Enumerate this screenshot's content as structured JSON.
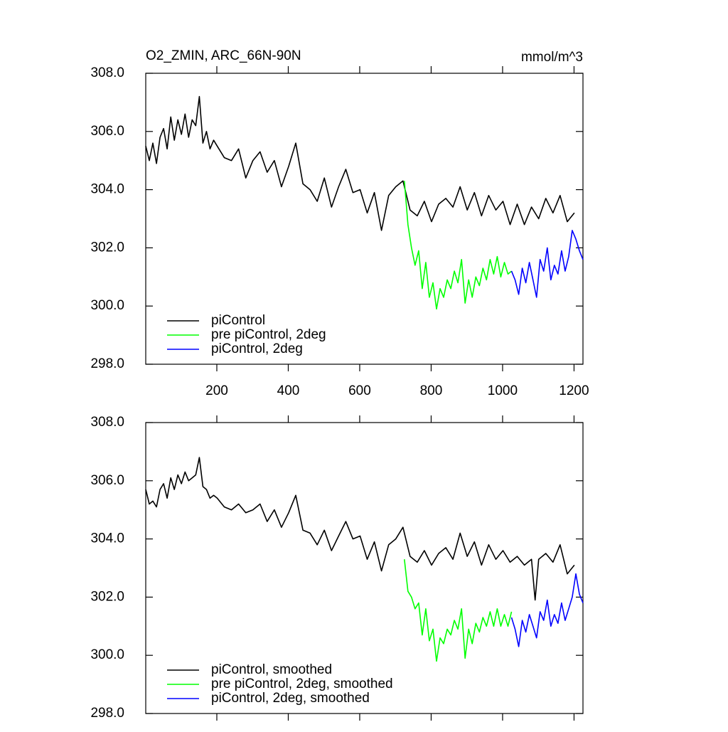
{
  "chart_data": [
    {
      "type": "line",
      "title": "O2_ZMIN, ARC_66N-90N",
      "units": "mmol/m^3",
      "xlim": [
        1,
        1225
      ],
      "ylim": [
        298,
        308
      ],
      "show_xtick_labels": true,
      "xticks": [
        200,
        400,
        600,
        800,
        1000,
        1200
      ],
      "yticks": [
        {
          "value": 298,
          "label": "298.0"
        },
        {
          "value": 300,
          "label": "300.0"
        },
        {
          "value": 302,
          "label": "302.0"
        },
        {
          "value": 304,
          "label": "304.0"
        },
        {
          "value": 306,
          "label": "306.0"
        },
        {
          "value": 308,
          "label": "308.0"
        }
      ],
      "series": [
        {
          "name": "piControl",
          "color": "#000000",
          "x": [
            1,
            11,
            21,
            31,
            41,
            51,
            61,
            71,
            81,
            91,
            101,
            111,
            121,
            131,
            141,
            151,
            161,
            171,
            181,
            191,
            201,
            221,
            241,
            261,
            281,
            301,
            321,
            341,
            361,
            381,
            401,
            421,
            441,
            461,
            481,
            501,
            521,
            541,
            561,
            581,
            601,
            621,
            641,
            661,
            681,
            701,
            721,
            741,
            761,
            781,
            801,
            821,
            841,
            861,
            881,
            901,
            921,
            941,
            961,
            981,
            1001,
            1021,
            1041,
            1061,
            1081,
            1101,
            1121,
            1141,
            1161,
            1181,
            1201
          ],
          "values": [
            305.5,
            305.0,
            305.6,
            304.9,
            305.8,
            306.1,
            305.4,
            306.5,
            305.7,
            306.4,
            305.9,
            306.6,
            305.8,
            306.4,
            306.2,
            307.2,
            305.6,
            306.0,
            305.4,
            305.7,
            305.5,
            305.1,
            305.0,
            305.4,
            304.4,
            305.0,
            305.3,
            304.6,
            305.0,
            304.1,
            304.8,
            305.6,
            304.2,
            304.0,
            303.6,
            304.4,
            303.4,
            304.1,
            304.7,
            303.9,
            304.0,
            303.2,
            303.9,
            302.6,
            303.8,
            304.1,
            304.3,
            303.3,
            303.1,
            303.6,
            302.9,
            303.5,
            303.7,
            303.4,
            304.1,
            303.3,
            303.9,
            303.1,
            303.8,
            303.3,
            303.6,
            302.8,
            303.5,
            302.8,
            303.4,
            303.0,
            303.7,
            303.2,
            303.8,
            302.9,
            303.2
          ]
        },
        {
          "name": "pre piControl, 2deg",
          "color": "#00ff00",
          "x": [
            725,
            735,
            745,
            755,
            765,
            775,
            785,
            795,
            805,
            815,
            825,
            835,
            845,
            855,
            865,
            875,
            885,
            895,
            905,
            915,
            925,
            935,
            945,
            955,
            965,
            975,
            985,
            995,
            1005,
            1015,
            1025
          ],
          "values": [
            304.3,
            302.8,
            302.0,
            301.4,
            301.9,
            300.6,
            301.5,
            300.3,
            300.8,
            299.9,
            300.6,
            300.3,
            300.9,
            300.6,
            301.2,
            300.8,
            301.6,
            300.1,
            300.9,
            300.3,
            301.0,
            300.7,
            301.3,
            300.9,
            301.6,
            301.1,
            301.7,
            301.0,
            301.5,
            301.1,
            301.2
          ]
        },
        {
          "name": "piControl, 2deg",
          "color": "#0000ff",
          "x": [
            1025,
            1035,
            1045,
            1055,
            1065,
            1075,
            1085,
            1095,
            1105,
            1115,
            1125,
            1135,
            1145,
            1155,
            1165,
            1175,
            1185,
            1195,
            1205,
            1215,
            1225
          ],
          "values": [
            301.2,
            300.9,
            300.4,
            301.3,
            300.8,
            301.5,
            300.9,
            300.3,
            301.6,
            301.2,
            302.0,
            300.9,
            301.4,
            301.1,
            301.9,
            301.2,
            301.7,
            302.6,
            302.3,
            301.9,
            301.6
          ]
        }
      ]
    },
    {
      "type": "line",
      "xlim": [
        1,
        1225
      ],
      "ylim": [
        298,
        308
      ],
      "show_xtick_labels": false,
      "xticks": [
        200,
        400,
        600,
        800,
        1000,
        1200
      ],
      "yticks": [
        {
          "value": 298,
          "label": "298.0"
        },
        {
          "value": 300,
          "label": "300.0"
        },
        {
          "value": 302,
          "label": "302.0"
        },
        {
          "value": 304,
          "label": "304.0"
        },
        {
          "value": 306,
          "label": "306.0"
        },
        {
          "value": 308,
          "label": "308.0"
        }
      ],
      "series": [
        {
          "name": "piControl, smoothed",
          "color": "#000000",
          "x": [
            1,
            11,
            21,
            31,
            41,
            51,
            61,
            71,
            81,
            91,
            101,
            111,
            121,
            131,
            141,
            151,
            161,
            171,
            181,
            191,
            201,
            221,
            241,
            261,
            281,
            301,
            321,
            341,
            361,
            381,
            401,
            421,
            441,
            461,
            481,
            501,
            521,
            541,
            561,
            581,
            601,
            621,
            641,
            661,
            681,
            701,
            721,
            741,
            761,
            781,
            801,
            821,
            841,
            861,
            881,
            901,
            921,
            941,
            961,
            981,
            1001,
            1021,
            1041,
            1061,
            1081,
            1091,
            1101,
            1121,
            1141,
            1161,
            1181,
            1201
          ],
          "values": [
            305.7,
            305.2,
            305.3,
            305.1,
            305.7,
            305.9,
            305.4,
            306.1,
            305.7,
            306.2,
            305.9,
            306.3,
            306.0,
            306.1,
            306.2,
            306.8,
            305.8,
            305.7,
            305.4,
            305.5,
            305.4,
            305.1,
            305.0,
            305.2,
            304.9,
            305.0,
            305.2,
            304.6,
            305.0,
            304.4,
            304.9,
            305.5,
            304.3,
            304.2,
            303.8,
            304.3,
            303.6,
            304.1,
            304.6,
            304.0,
            304.1,
            303.3,
            303.9,
            302.9,
            303.8,
            304.0,
            304.4,
            303.4,
            303.2,
            303.6,
            303.1,
            303.5,
            303.7,
            303.3,
            304.2,
            303.4,
            303.9,
            303.1,
            303.8,
            303.3,
            303.6,
            303.2,
            303.4,
            303.1,
            303.3,
            301.9,
            303.3,
            303.5,
            303.2,
            303.8,
            302.8,
            303.1
          ]
        },
        {
          "name": "pre piControl, 2deg, smoothed",
          "color": "#00ff00",
          "x": [
            725,
            735,
            745,
            755,
            765,
            775,
            785,
            795,
            805,
            815,
            825,
            835,
            845,
            855,
            865,
            875,
            885,
            895,
            905,
            915,
            925,
            935,
            945,
            955,
            965,
            975,
            985,
            995,
            1005,
            1015,
            1025
          ],
          "values": [
            303.3,
            302.2,
            302.0,
            301.6,
            301.8,
            300.7,
            301.6,
            300.5,
            300.9,
            299.8,
            300.6,
            300.4,
            300.9,
            300.7,
            301.2,
            300.9,
            301.6,
            299.9,
            300.9,
            300.4,
            301.1,
            300.8,
            301.3,
            301.0,
            301.5,
            301.0,
            301.6,
            301.0,
            301.4,
            301.0,
            301.5
          ]
        },
        {
          "name": "piControl, 2deg, smoothed",
          "color": "#0000ff",
          "x": [
            1025,
            1035,
            1045,
            1055,
            1065,
            1075,
            1085,
            1095,
            1105,
            1115,
            1125,
            1135,
            1145,
            1155,
            1165,
            1175,
            1185,
            1195,
            1205,
            1215,
            1225
          ],
          "values": [
            301.3,
            300.9,
            300.3,
            301.2,
            300.8,
            301.4,
            301.0,
            300.6,
            301.5,
            301.2,
            301.9,
            301.0,
            301.4,
            301.1,
            301.8,
            301.2,
            301.6,
            302.0,
            302.8,
            302.1,
            301.8
          ]
        }
      ]
    }
  ]
}
